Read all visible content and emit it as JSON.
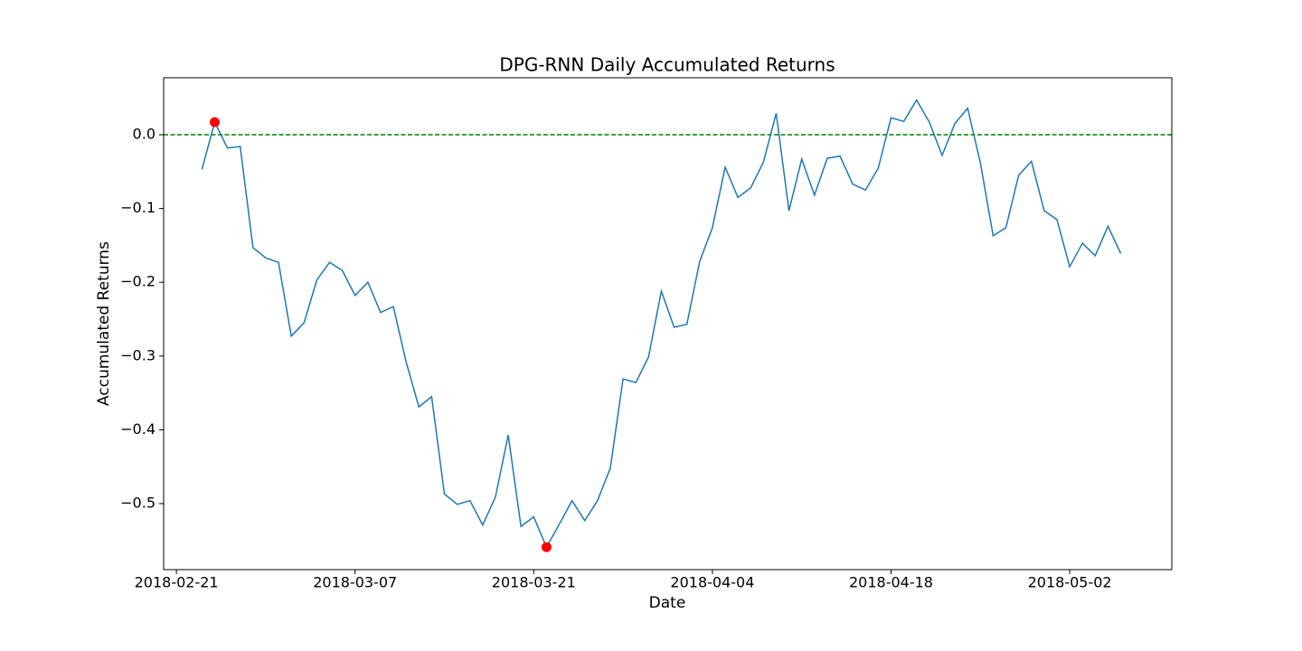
{
  "chart_data": {
    "type": "line",
    "title": "DPG-RNN Daily Accumulated Returns",
    "x_label": "Date",
    "y_label": "Accumulated Returns",
    "x": [
      "2018-02-23",
      "2018-02-24",
      "2018-02-25",
      "2018-02-26",
      "2018-02-27",
      "2018-02-28",
      "2018-03-01",
      "2018-03-02",
      "2018-03-03",
      "2018-03-04",
      "2018-03-05",
      "2018-03-06",
      "2018-03-07",
      "2018-03-08",
      "2018-03-09",
      "2018-03-10",
      "2018-03-11",
      "2018-03-12",
      "2018-03-13",
      "2018-03-14",
      "2018-03-15",
      "2018-03-16",
      "2018-03-17",
      "2018-03-18",
      "2018-03-19",
      "2018-03-20",
      "2018-03-21",
      "2018-03-22",
      "2018-03-23",
      "2018-03-24",
      "2018-03-25",
      "2018-03-26",
      "2018-03-27",
      "2018-03-28",
      "2018-03-29",
      "2018-03-30",
      "2018-03-31",
      "2018-04-01",
      "2018-04-02",
      "2018-04-03",
      "2018-04-04",
      "2018-04-05",
      "2018-04-06",
      "2018-04-07",
      "2018-04-08",
      "2018-04-09",
      "2018-04-10",
      "2018-04-11",
      "2018-04-12",
      "2018-04-13",
      "2018-04-14",
      "2018-04-15",
      "2018-04-16",
      "2018-04-17",
      "2018-04-18",
      "2018-04-19",
      "2018-04-20",
      "2018-04-21",
      "2018-04-22",
      "2018-04-23",
      "2018-04-24",
      "2018-04-25",
      "2018-04-26",
      "2018-04-27",
      "2018-04-28",
      "2018-04-29",
      "2018-04-30",
      "2018-05-01",
      "2018-05-02",
      "2018-05-03",
      "2018-05-04",
      "2018-05-05",
      "2018-05-06"
    ],
    "series": [
      {
        "name": "Accumulated Returns",
        "color": "#1f77b4",
        "values": [
          -0.047,
          0.017,
          -0.018,
          -0.016,
          -0.153,
          -0.167,
          -0.173,
          -0.273,
          -0.255,
          -0.197,
          -0.173,
          -0.184,
          -0.218,
          -0.2,
          -0.241,
          -0.233,
          -0.308,
          -0.369,
          -0.355,
          -0.487,
          -0.501,
          -0.496,
          -0.529,
          -0.491,
          -0.407,
          -0.531,
          -0.518,
          -0.559,
          -0.528,
          -0.496,
          -0.523,
          -0.496,
          -0.452,
          -0.331,
          -0.336,
          -0.301,
          -0.212,
          -0.261,
          -0.257,
          -0.172,
          -0.126,
          -0.044,
          -0.085,
          -0.072,
          -0.037,
          0.029,
          -0.103,
          -0.033,
          -0.082,
          -0.032,
          -0.029,
          -0.067,
          -0.075,
          -0.045,
          0.023,
          0.018,
          0.047,
          0.017,
          -0.028,
          0.015,
          0.036,
          -0.038,
          -0.137,
          -0.126,
          -0.055,
          -0.036,
          -0.103,
          -0.115,
          -0.179,
          -0.147,
          -0.164,
          -0.124,
          -0.161
        ]
      }
    ],
    "markers": {
      "color": "red",
      "x": [
        "2018-02-24",
        "2018-03-22"
      ],
      "values": [
        0.017,
        -0.559
      ]
    },
    "hline": {
      "value": 0,
      "color": "green",
      "style": "dashed"
    },
    "xlim": [
      "2018-02-20",
      "2018-05-10"
    ],
    "xticks": [
      "2018-02-21",
      "2018-03-07",
      "2018-03-21",
      "2018-04-04",
      "2018-04-18",
      "2018-05-02"
    ],
    "ylim": [
      -0.5895,
      0.0772
    ],
    "yticks": [
      {
        "value": -0.5,
        "label": "−0.5"
      },
      {
        "value": -0.4,
        "label": "−0.4"
      },
      {
        "value": -0.3,
        "label": "−0.3"
      },
      {
        "value": -0.2,
        "label": "−0.2"
      },
      {
        "value": -0.1,
        "label": "−0.1"
      },
      {
        "value": 0,
        "label": "0.0"
      }
    ],
    "grid": false
  }
}
